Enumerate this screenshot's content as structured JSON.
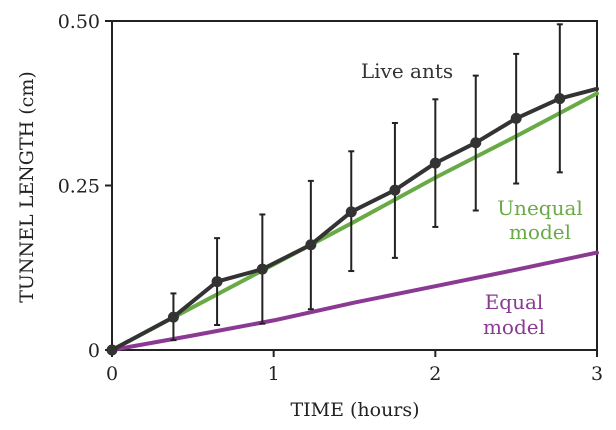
{
  "chart_data": {
    "type": "line",
    "xlabel": "TIME (hours)",
    "ylabel": "TUNNEL LENGTH (cm)",
    "xlim": [
      0,
      3
    ],
    "ylim": [
      0,
      0.5
    ],
    "x_ticks": [
      0,
      1,
      2,
      3
    ],
    "x_tick_labels": [
      "0",
      "1",
      "2",
      "3"
    ],
    "y_ticks": [
      0,
      0.25,
      0.5
    ],
    "y_tick_labels": [
      "0",
      "0.25",
      "0.50"
    ],
    "series": [
      {
        "name": "Unequal model",
        "label_lines": [
          "Unequal",
          "model"
        ],
        "color": "#6aaa46",
        "x": [
          0,
          0.5,
          1.0,
          1.5,
          2.0,
          2.5,
          3.0
        ],
        "y": [
          0,
          0.065,
          0.13,
          0.195,
          0.262,
          0.325,
          0.39
        ]
      },
      {
        "name": "Equal model",
        "label_lines": [
          "Equal",
          "model"
        ],
        "color": "#8b3a93",
        "x": [
          0,
          0.5,
          1.0,
          1.5,
          2.0,
          2.5,
          3.0
        ],
        "y": [
          0,
          0.022,
          0.045,
          0.072,
          0.097,
          0.122,
          0.148
        ]
      },
      {
        "name": "Live ants",
        "label_lines": [
          "Live ants"
        ],
        "color": "#333333",
        "x": [
          0,
          0.38,
          0.65,
          0.93,
          1.23,
          1.48,
          1.75,
          2.0,
          2.25,
          2.5,
          2.77,
          3.0
        ],
        "y": [
          0,
          0.05,
          0.104,
          0.123,
          0.16,
          0.21,
          0.243,
          0.284,
          0.315,
          0.352,
          0.382,
          0.397
        ],
        "markers_at": [
          0,
          0.38,
          0.65,
          0.93,
          1.23,
          1.48,
          1.75,
          2.0,
          2.25,
          2.5,
          2.77
        ],
        "error_x": [
          0.38,
          0.65,
          0.93,
          1.23,
          1.48,
          1.75,
          2.0,
          2.25,
          2.5,
          2.77
        ],
        "error_low": [
          0.015,
          0.038,
          0.04,
          0.062,
          0.12,
          0.14,
          0.187,
          0.212,
          0.253,
          0.27
        ],
        "error_high": [
          0.086,
          0.17,
          0.206,
          0.257,
          0.302,
          0.345,
          0.381,
          0.417,
          0.45,
          0.495
        ]
      }
    ]
  }
}
